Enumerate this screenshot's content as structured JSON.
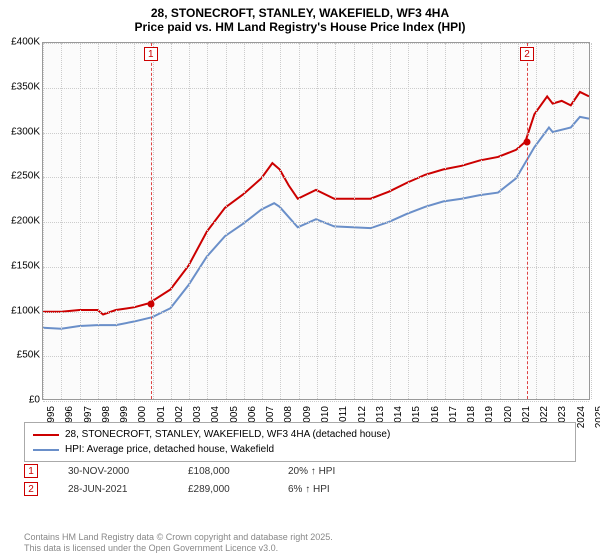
{
  "title": {
    "line1": "28, STONECROFT, STANLEY, WAKEFIELD, WF3 4HA",
    "line2": "Price paid vs. HM Land Registry's House Price Index (HPI)"
  },
  "chart": {
    "type": "line",
    "background_color": "#fbfbfb",
    "grid_color": "#cccccc",
    "border_color": "#999999",
    "x": {
      "min": 1995,
      "max": 2025,
      "tick_step": 1,
      "ticks": [
        1995,
        1996,
        1997,
        1998,
        1999,
        2000,
        2001,
        2002,
        2003,
        2004,
        2005,
        2006,
        2007,
        2008,
        2009,
        2010,
        2011,
        2012,
        2013,
        2014,
        2015,
        2016,
        2017,
        2018,
        2019,
        2020,
        2021,
        2022,
        2023,
        2024,
        2025
      ]
    },
    "y": {
      "min": 0,
      "max": 400000,
      "tick_step": 50000,
      "ticks": [
        0,
        50000,
        100000,
        150000,
        200000,
        250000,
        300000,
        350000,
        400000
      ],
      "tick_labels": [
        "£0",
        "£50K",
        "£100K",
        "£150K",
        "£200K",
        "£250K",
        "£300K",
        "£350K",
        "£400K"
      ]
    },
    "series": [
      {
        "name": "28, STONECROFT, STANLEY, WAKEFIELD, WF3 4HA (detached house)",
        "color": "#cc0000",
        "line_width": 2,
        "data": [
          [
            1995,
            98000
          ],
          [
            1996,
            98000
          ],
          [
            1997,
            100000
          ],
          [
            1998,
            100000
          ],
          [
            1998.3,
            95000
          ],
          [
            1999,
            100000
          ],
          [
            2000,
            103000
          ],
          [
            2000.9,
            108000
          ],
          [
            2001,
            110000
          ],
          [
            2002,
            123000
          ],
          [
            2003,
            150000
          ],
          [
            2004,
            188000
          ],
          [
            2005,
            215000
          ],
          [
            2006,
            230000
          ],
          [
            2007,
            248000
          ],
          [
            2007.6,
            265000
          ],
          [
            2008,
            258000
          ],
          [
            2008.5,
            240000
          ],
          [
            2009,
            225000
          ],
          [
            2010,
            235000
          ],
          [
            2011,
            225000
          ],
          [
            2012,
            225000
          ],
          [
            2013,
            225000
          ],
          [
            2014,
            233000
          ],
          [
            2015,
            243000
          ],
          [
            2016,
            252000
          ],
          [
            2017,
            258000
          ],
          [
            2018,
            262000
          ],
          [
            2019,
            268000
          ],
          [
            2020,
            272000
          ],
          [
            2021,
            280000
          ],
          [
            2021.5,
            289000
          ],
          [
            2022,
            320000
          ],
          [
            2022.7,
            340000
          ],
          [
            2023,
            332000
          ],
          [
            2023.5,
            335000
          ],
          [
            2024,
            330000
          ],
          [
            2024.5,
            345000
          ],
          [
            2025,
            340000
          ]
        ]
      },
      {
        "name": "HPI: Average price, detached house, Wakefield",
        "color": "#6a8fc9",
        "line_width": 2,
        "data": [
          [
            1995,
            80000
          ],
          [
            1996,
            79000
          ],
          [
            1997,
            82000
          ],
          [
            1998,
            83000
          ],
          [
            1999,
            83000
          ],
          [
            2000,
            87000
          ],
          [
            2001,
            92000
          ],
          [
            2002,
            102000
          ],
          [
            2003,
            128000
          ],
          [
            2004,
            160000
          ],
          [
            2005,
            183000
          ],
          [
            2006,
            197000
          ],
          [
            2007,
            213000
          ],
          [
            2007.7,
            220000
          ],
          [
            2008,
            216000
          ],
          [
            2009,
            193000
          ],
          [
            2010,
            202000
          ],
          [
            2011,
            194000
          ],
          [
            2012,
            193000
          ],
          [
            2013,
            192000
          ],
          [
            2014,
            199000
          ],
          [
            2015,
            208000
          ],
          [
            2016,
            216000
          ],
          [
            2017,
            222000
          ],
          [
            2018,
            225000
          ],
          [
            2019,
            229000
          ],
          [
            2020,
            232000
          ],
          [
            2021,
            248000
          ],
          [
            2022,
            283000
          ],
          [
            2022.8,
            305000
          ],
          [
            2023,
            300000
          ],
          [
            2024,
            305000
          ],
          [
            2024.5,
            317000
          ],
          [
            2025,
            315000
          ]
        ]
      }
    ],
    "sale_markers": [
      {
        "label": "1",
        "x": 2000.9,
        "y": 108000
      },
      {
        "label": "2",
        "x": 2021.5,
        "y": 289000
      }
    ]
  },
  "legend": {
    "items": [
      {
        "color": "#cc0000",
        "label": "28, STONECROFT, STANLEY, WAKEFIELD, WF3 4HA (detached house)"
      },
      {
        "color": "#6a8fc9",
        "label": "HPI: Average price, detached house, Wakefield"
      }
    ]
  },
  "datapoints": [
    {
      "badge": "1",
      "date": "30-NOV-2000",
      "price": "£108,000",
      "delta": "20% ↑ HPI"
    },
    {
      "badge": "2",
      "date": "28-JUN-2021",
      "price": "£289,000",
      "delta": "6% ↑ HPI"
    }
  ],
  "footer": {
    "line1": "Contains HM Land Registry data © Crown copyright and database right 2025.",
    "line2": "This data is licensed under the Open Government Licence v3.0."
  }
}
